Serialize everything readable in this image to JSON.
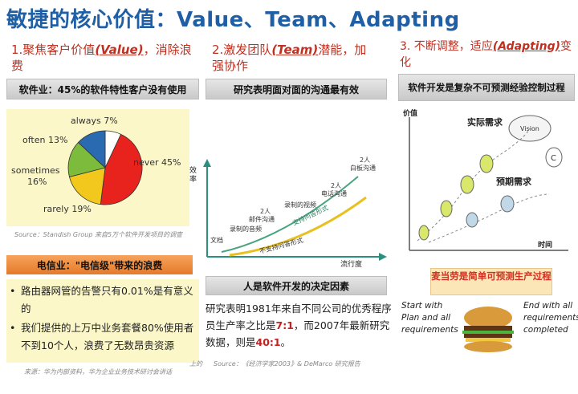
{
  "title": "敏捷的核心价值：Value、Team、Adapting",
  "col1": {
    "heading_pre": "1.聚焦客户价值",
    "heading_em": "(Value)",
    "heading_post": "，消除浪费",
    "bar": "软件业：45%的软件特性客户没有使用",
    "pie": {
      "slices": [
        {
          "label": "never 45%",
          "value": 45,
          "color": "#e8221c"
        },
        {
          "label": "rarely 19%",
          "value": 19,
          "color": "#f2c81c"
        },
        {
          "label": "sometimes 16%",
          "value": 16,
          "color": "#7cbb3c"
        },
        {
          "label": "often 13%",
          "value": 13,
          "color": "#2a6ab0"
        },
        {
          "label": "always 7%",
          "value": 7,
          "color": "#ffffff"
        }
      ]
    },
    "source": "Source：Standish Group 来自5万个软件开发项目的调查",
    "orange_bar": "电信业：\"电信级\"带来的浪费",
    "bullets": [
      "路由器网管的告警只有0.01%是有意义的",
      "我们提供的上万中业务套餐80%使用者不到10个人，浪费了无数昂贵资源"
    ],
    "footer_note": "来源：华为内部资料，华为企业业务技术研讨会讲话",
    "footer_note_right": "上的"
  },
  "col2": {
    "heading_pre": "2.激发团队",
    "heading_em": "(Team)",
    "heading_post": "潜能，加强协作",
    "bar": "研究表明面对面的沟通最有效",
    "chart": {
      "ylabel": "效率",
      "xlabel": "流行度",
      "labels": [
        "文档",
        "录制的音频",
        "邮件沟通",
        "录制的视频",
        "电话沟通",
        "白板沟通"
      ],
      "top_labels": [
        "2人",
        "2人",
        "2人"
      ],
      "curve1": "不支持问答形式",
      "curve2": "支持问答形式"
    },
    "bar2": "人是软件开发的决定因素",
    "para_pre": "研究表明1981年来自不同公司的优秀程序员生产率之比是",
    "para_v1": "7:1",
    "para_mid": "，而2007年最新研究数据，则是",
    "para_v2": "40:1",
    "para_post": "。",
    "source": "Source：《经济学家2003》& DeMarco 研究报告"
  },
  "col3": {
    "heading_pre": "3. 不断调整，适应",
    "heading_em": "(Adapting)",
    "heading_post": "变化",
    "bar": "软件开发是复杂不可预测经验控制过程",
    "chart": {
      "ylabel": "价值",
      "xlabel": "时间",
      "actual": "实际需求",
      "planned": "预期需求",
      "vision": "Vision"
    },
    "mcd_title": "麦当劳是简单可预测生产过程",
    "left_text": "Start with Plan and all requirements",
    "right_text": "End with all requirements completed"
  }
}
